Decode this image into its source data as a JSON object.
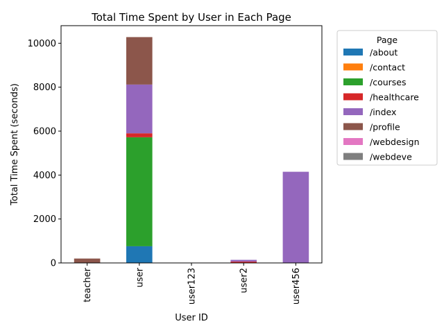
{
  "chart_data": {
    "type": "bar",
    "stacked": true,
    "title": "Total Time Spent by User in Each Page",
    "xlabel": "User ID",
    "ylabel": "Total Time Spent (seconds)",
    "ylim": [
      0,
      10800
    ],
    "yticks": [
      0,
      2000,
      4000,
      6000,
      8000,
      10000
    ],
    "grid": false,
    "legend": {
      "title": "Page",
      "placement": "outside-top-right"
    },
    "categories": [
      "teacher",
      "user",
      "user123",
      "user2",
      "user456"
    ],
    "series": [
      {
        "name": "/about",
        "color": "#1f77b4",
        "values": [
          0,
          760,
          0,
          0,
          0
        ]
      },
      {
        "name": "/contact",
        "color": "#ff7f0e",
        "values": [
          0,
          0,
          0,
          0,
          0
        ]
      },
      {
        "name": "/courses",
        "color": "#2ca02c",
        "values": [
          0,
          4960,
          0,
          0,
          0
        ]
      },
      {
        "name": "/healthcare",
        "color": "#d62728",
        "values": [
          0,
          180,
          0,
          60,
          0
        ]
      },
      {
        "name": "/index",
        "color": "#9467bd",
        "values": [
          0,
          2220,
          0,
          80,
          4150
        ]
      },
      {
        "name": "/profile",
        "color": "#8c564b",
        "values": [
          200,
          2160,
          0,
          0,
          0
        ]
      },
      {
        "name": "/webdesign",
        "color": "#e377c2",
        "values": [
          0,
          0,
          0,
          0,
          0
        ]
      },
      {
        "name": "/webdeve",
        "color": "#7f7f7f",
        "values": [
          0,
          0,
          0,
          0,
          0
        ]
      }
    ]
  }
}
